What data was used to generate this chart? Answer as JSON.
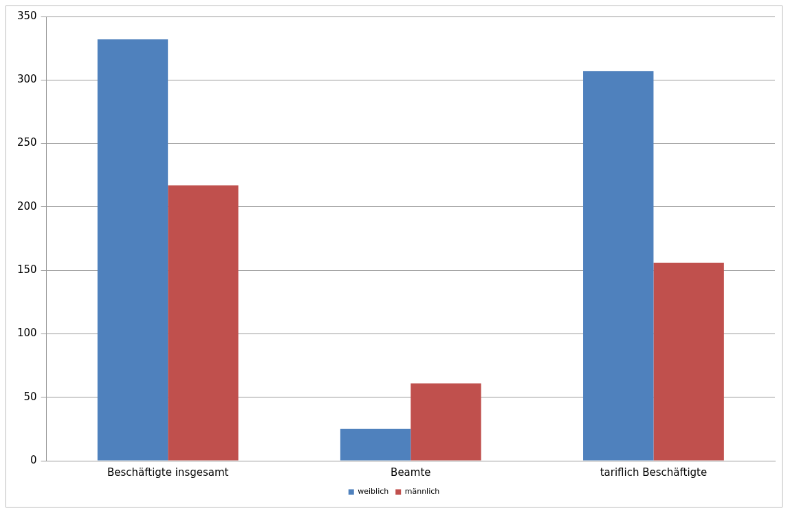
{
  "chart_data": {
    "type": "bar",
    "categories": [
      "Beschäftigte insgesamt",
      "Beamte",
      "tariflich Beschäftigte"
    ],
    "series": [
      {
        "name": "weiblich",
        "color": "#4f81bd",
        "values": [
          332,
          25,
          307
        ]
      },
      {
        "name": "männlich",
        "color": "#c0504d",
        "values": [
          217,
          61,
          156
        ]
      }
    ],
    "ylim": [
      0,
      350
    ],
    "yticks": [
      0,
      50,
      100,
      150,
      200,
      250,
      300,
      350
    ],
    "grid": "y",
    "legend": "bottom"
  }
}
